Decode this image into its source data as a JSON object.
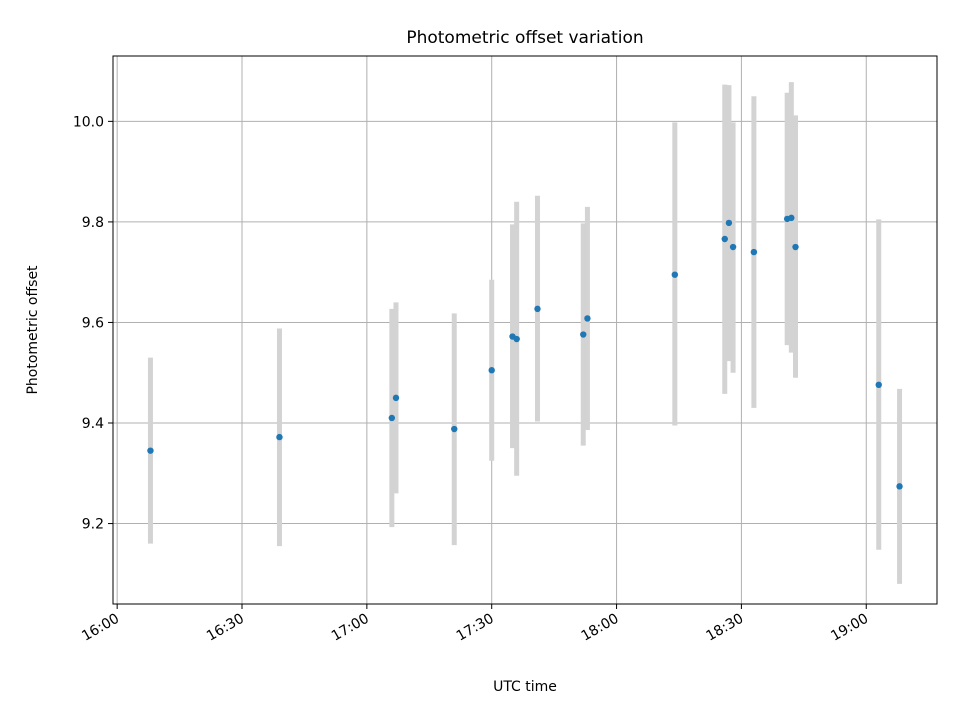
{
  "chart_data": {
    "type": "scatter",
    "title": "Photometric offset variation",
    "xlabel": "UTC time",
    "ylabel": "Photometric offset",
    "x_ticks": [
      "16:00",
      "16:30",
      "17:00",
      "17:30",
      "18:00",
      "18:30",
      "19:00"
    ],
    "y_ticks": [
      "9.2",
      "9.4",
      "9.6",
      "9.8",
      "10.0"
    ],
    "xlim": [
      "15:59",
      "19:17"
    ],
    "ylim": [
      9.04,
      10.13
    ],
    "grid": true,
    "colors": {
      "point": "#1f77b4",
      "errorbar": "#d3d3d3"
    },
    "points": [
      {
        "x": "16:08",
        "y": 9.345,
        "ylow": 9.16,
        "yhigh": 9.53
      },
      {
        "x": "16:39",
        "y": 9.372,
        "ylow": 9.155,
        "yhigh": 9.588
      },
      {
        "x": "17:06",
        "y": 9.41,
        "ylow": 9.193,
        "yhigh": 9.627
      },
      {
        "x": "17:07",
        "y": 9.45,
        "ylow": 9.26,
        "yhigh": 9.64
      },
      {
        "x": "17:21",
        "y": 9.388,
        "ylow": 9.157,
        "yhigh": 9.618
      },
      {
        "x": "17:30",
        "y": 9.505,
        "ylow": 9.325,
        "yhigh": 9.685
      },
      {
        "x": "17:35",
        "y": 9.572,
        "ylow": 9.35,
        "yhigh": 9.795
      },
      {
        "x": "17:36",
        "y": 9.567,
        "ylow": 9.295,
        "yhigh": 9.84
      },
      {
        "x": "17:41",
        "y": 9.627,
        "ylow": 9.403,
        "yhigh": 9.852
      },
      {
        "x": "17:52",
        "y": 9.576,
        "ylow": 9.355,
        "yhigh": 9.797
      },
      {
        "x": "17:53",
        "y": 9.608,
        "ylow": 9.386,
        "yhigh": 9.83
      },
      {
        "x": "18:14",
        "y": 9.695,
        "ylow": 9.395,
        "yhigh": 9.998
      },
      {
        "x": "18:26",
        "y": 9.766,
        "ylow": 9.458,
        "yhigh": 10.073
      },
      {
        "x": "18:27",
        "y": 9.798,
        "ylow": 9.523,
        "yhigh": 10.072
      },
      {
        "x": "18:28",
        "y": 9.75,
        "ylow": 9.5,
        "yhigh": 9.998
      },
      {
        "x": "18:33",
        "y": 9.74,
        "ylow": 9.43,
        "yhigh": 10.05
      },
      {
        "x": "18:41",
        "y": 9.806,
        "ylow": 9.555,
        "yhigh": 10.057
      },
      {
        "x": "18:42",
        "y": 9.808,
        "ylow": 9.54,
        "yhigh": 10.078
      },
      {
        "x": "18:43",
        "y": 9.75,
        "ylow": 9.49,
        "yhigh": 10.012
      },
      {
        "x": "19:03",
        "y": 9.476,
        "ylow": 9.148,
        "yhigh": 9.805
      },
      {
        "x": "19:08",
        "y": 9.274,
        "ylow": 9.08,
        "yhigh": 9.468
      }
    ]
  }
}
